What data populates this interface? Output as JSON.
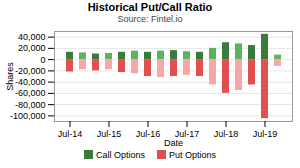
{
  "chart_data": {
    "type": "bar",
    "title": "Historical Put/Call Ratio",
    "subtitle": "Source: Fintel.io",
    "xlabel": "Date",
    "ylabel": "Shares",
    "categories": [
      "Jul-14",
      null,
      null,
      "Jul-15",
      null,
      null,
      "Jul-16",
      null,
      null,
      "Jul-17",
      null,
      null,
      "Jul-18",
      null,
      null,
      "Jul-19",
      null
    ],
    "series": [
      {
        "name": "Call Options",
        "color": "#3a7a3a",
        "colors": [
          "#3a7a3a",
          "#5ab55a",
          "#3a7a3a",
          "#5ab55a",
          "#3a7a3a",
          "#5ab55a",
          "#3a7a3a",
          "#5ab55a",
          "#3a7a3a",
          "#5ab55a",
          "#3a7a3a",
          "#5ab55a",
          "#3a7a3a",
          "#5ab55a",
          "#3a7a3a",
          "#3a7a3a",
          "#5ab55a"
        ],
        "values": [
          13000,
          12000,
          10000,
          11000,
          13000,
          15000,
          13000,
          15000,
          16000,
          14000,
          13000,
          20000,
          30000,
          28000,
          25000,
          45000,
          8000
        ]
      },
      {
        "name": "Put Options",
        "color": "#e05050",
        "colors": [
          "#e05050",
          "#f4a8a8",
          "#e05050",
          "#f4a8a8",
          "#e05050",
          "#f4a8a8",
          "#e05050",
          "#f4a8a8",
          "#e05050",
          "#f4a8a8",
          "#e05050",
          "#f4a8a8",
          "#e05050",
          "#f4a8a8",
          "#e05050",
          "#e05050",
          "#f4a8a8"
        ],
        "values": [
          -22000,
          -18000,
          -20000,
          -18000,
          -23000,
          -25000,
          -30000,
          -32000,
          -30000,
          -28000,
          -30000,
          -45000,
          -60000,
          -55000,
          -45000,
          -105000,
          -12000
        ]
      }
    ],
    "ylim": [
      -110000,
      50000
    ],
    "yticks": [
      {
        "value": -100000,
        "label": "-100,000"
      },
      {
        "value": -80000,
        "label": "-80,000"
      },
      {
        "value": -60000,
        "label": "-60,000"
      },
      {
        "value": -40000,
        "label": "-40,000"
      },
      {
        "value": -20000,
        "label": "-20,000"
      },
      0,
      {
        "value": 20000,
        "label": "20,000"
      },
      {
        "value": 40000,
        "label": "40,000"
      }
    ],
    "grid": true,
    "legend": "bottom"
  }
}
